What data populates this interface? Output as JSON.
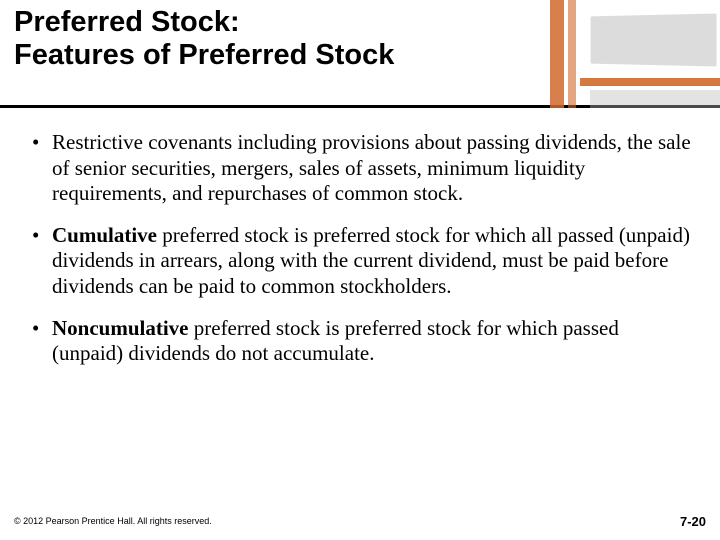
{
  "title": {
    "line1": "Preferred Stock:",
    "line2": "Features of Preferred Stock"
  },
  "bullets": [
    {
      "prefix": "",
      "bold": "",
      "text": "Restrictive covenants including provisions about passing dividends, the sale of senior securities, mergers, sales of assets, minimum liquidity requirements, and repurchases of common stock."
    },
    {
      "prefix": "",
      "bold": "Cumulative",
      "text": " preferred stock is preferred stock for which all passed (unpaid) dividends in arrears, along with the current dividend, must be paid before dividends can be paid to common stockholders."
    },
    {
      "prefix": "",
      "bold": "Noncumulative",
      "text": " preferred stock is preferred stock for which passed (unpaid) dividends do not accumulate."
    }
  ],
  "footer": {
    "copyright": "© 2012 Pearson Prentice Hall. All rights reserved.",
    "page": "7-20"
  },
  "colors": {
    "accent": "#d06a2c",
    "divider": "#000000",
    "text": "#000000",
    "background": "#ffffff"
  }
}
